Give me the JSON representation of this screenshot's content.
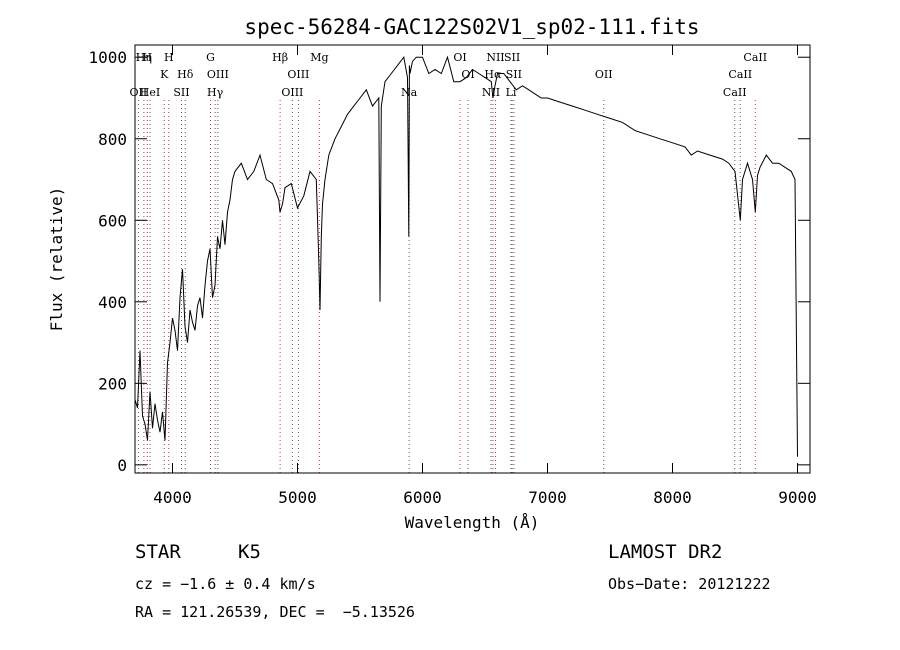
{
  "chart_data": {
    "type": "line",
    "title": "spec-56284-GAC122S02V1_sp02-111.fits",
    "xlabel": "Wavelength (Å)",
    "ylabel": "Flux (relative)",
    "xlim": [
      3700,
      9100
    ],
    "ylim": [
      -20,
      1030
    ],
    "x_ticks": [
      4000,
      5000,
      6000,
      7000,
      8000,
      9000
    ],
    "y_ticks": [
      0,
      200,
      400,
      600,
      800,
      1000
    ],
    "x_tick_labels": [
      "4000",
      "5000",
      "6000",
      "7000",
      "8000",
      "9000"
    ],
    "y_tick_labels": [
      "0",
      "200",
      "400",
      "600",
      "800",
      "1000"
    ],
    "series": [
      {
        "name": "flux",
        "x": [
          3700,
          3720,
          3740,
          3760,
          3780,
          3800,
          3820,
          3840,
          3860,
          3880,
          3900,
          3920,
          3940,
          3960,
          3980,
          4000,
          4020,
          4040,
          4060,
          4080,
          4100,
          4120,
          4140,
          4160,
          4180,
          4200,
          4220,
          4240,
          4260,
          4280,
          4300,
          4320,
          4340,
          4360,
          4380,
          4400,
          4420,
          4440,
          4460,
          4480,
          4500,
          4550,
          4600,
          4650,
          4700,
          4750,
          4800,
          4850,
          4860,
          4880,
          4900,
          4950,
          5000,
          5050,
          5100,
          5150,
          5170,
          5180,
          5190,
          5200,
          5220,
          5250,
          5300,
          5350,
          5400,
          5450,
          5500,
          5550,
          5600,
          5650,
          5660,
          5670,
          5700,
          5750,
          5800,
          5850,
          5880,
          5890,
          5895,
          5900,
          5920,
          5950,
          6000,
          6050,
          6100,
          6150,
          6200,
          6250,
          6300,
          6350,
          6400,
          6450,
          6500,
          6550,
          6563,
          6580,
          6600,
          6650,
          6700,
          6750,
          6800,
          6850,
          6900,
          6950,
          7000,
          7100,
          7200,
          7300,
          7400,
          7500,
          7600,
          7700,
          7800,
          7900,
          8000,
          8100,
          8150,
          8200,
          8300,
          8400,
          8450,
          8500,
          8542,
          8560,
          8600,
          8640,
          8662,
          8680,
          8700,
          8750,
          8800,
          8850,
          8900,
          8950,
          8980,
          9000
        ],
        "values": [
          160,
          140,
          280,
          120,
          100,
          60,
          180,
          90,
          150,
          110,
          80,
          130,
          60,
          250,
          300,
          360,
          330,
          280,
          410,
          480,
          340,
          300,
          380,
          350,
          330,
          390,
          410,
          360,
          440,
          500,
          530,
          410,
          440,
          560,
          530,
          600,
          540,
          620,
          650,
          700,
          720,
          740,
          700,
          720,
          760,
          700,
          690,
          650,
          620,
          640,
          680,
          690,
          630,
          660,
          720,
          700,
          500,
          380,
          560,
          640,
          700,
          760,
          800,
          830,
          860,
          880,
          900,
          920,
          880,
          900,
          400,
          880,
          940,
          960,
          980,
          1000,
          950,
          560,
          980,
          960,
          990,
          1000,
          1000,
          960,
          970,
          960,
          1000,
          940,
          940,
          950,
          970,
          960,
          950,
          940,
          900,
          930,
          960,
          960,
          940,
          920,
          930,
          920,
          910,
          900,
          900,
          890,
          880,
          870,
          860,
          850,
          840,
          820,
          810,
          800,
          790,
          780,
          760,
          770,
          760,
          750,
          740,
          720,
          600,
          700,
          740,
          700,
          620,
          710,
          730,
          760,
          740,
          740,
          730,
          720,
          700,
          20
        ],
        "color": "#000000"
      }
    ],
    "line_markers": [
      {
        "wave": 3727,
        "label": "OII",
        "row": 3
      },
      {
        "wave": 3771,
        "label": "Hη",
        "row": 1
      },
      {
        "wave": 3798,
        "label": "H",
        "row": 1
      },
      {
        "wave": 3820,
        "label": "HeI",
        "row": 3
      },
      {
        "wave": 3934,
        "label": "K",
        "row": 2
      },
      {
        "wave": 3970,
        "label": "H",
        "row": 1
      },
      {
        "wave": 4072,
        "label": "SII",
        "row": 3
      },
      {
        "wave": 4102,
        "label": "Hδ",
        "row": 2
      },
      {
        "wave": 4304,
        "label": "G",
        "row": 1
      },
      {
        "wave": 4341,
        "label": "Hγ",
        "row": 3
      },
      {
        "wave": 4363,
        "label": "OIII",
        "row": 2
      },
      {
        "wave": 4861,
        "label": "Hβ",
        "row": 1
      },
      {
        "wave": 4959,
        "label": "OIII",
        "row": 3
      },
      {
        "wave": 5007,
        "label": "OIII",
        "row": 2
      },
      {
        "wave": 5175,
        "label": "Mg",
        "row": 1
      },
      {
        "wave": 5893,
        "label": "Na",
        "row": 3
      },
      {
        "wave": 6300,
        "label": "OI",
        "row": 1
      },
      {
        "wave": 6364,
        "label": "OI",
        "row": 2
      },
      {
        "wave": 6548,
        "label": "NII",
        "row": 3
      },
      {
        "wave": 6563,
        "label": "Hα",
        "row": 2
      },
      {
        "wave": 6584,
        "label": "NII",
        "row": 1
      },
      {
        "wave": 6717,
        "label": "SII",
        "row": 1
      },
      {
        "wave": 6731,
        "label": "SII",
        "row": 2
      },
      {
        "wave": 6708,
        "label": "Li",
        "row": 3
      },
      {
        "wave": 7450,
        "label": "OII",
        "row": 2
      },
      {
        "wave": 8498,
        "label": "CaII",
        "row": 3
      },
      {
        "wave": 8542,
        "label": "CaII",
        "row": 2
      },
      {
        "wave": 8662,
        "label": "CaII",
        "row": 1
      }
    ]
  },
  "footer": {
    "class": "STAR",
    "subclass": "K5",
    "cz": "cz = −1.6 ± 0.4 km/s",
    "radec": "RA = 121.26539, DEC =  −5.13526",
    "survey": "LAMOST DR2",
    "obsdate": "Obs−Date: 20121222"
  }
}
